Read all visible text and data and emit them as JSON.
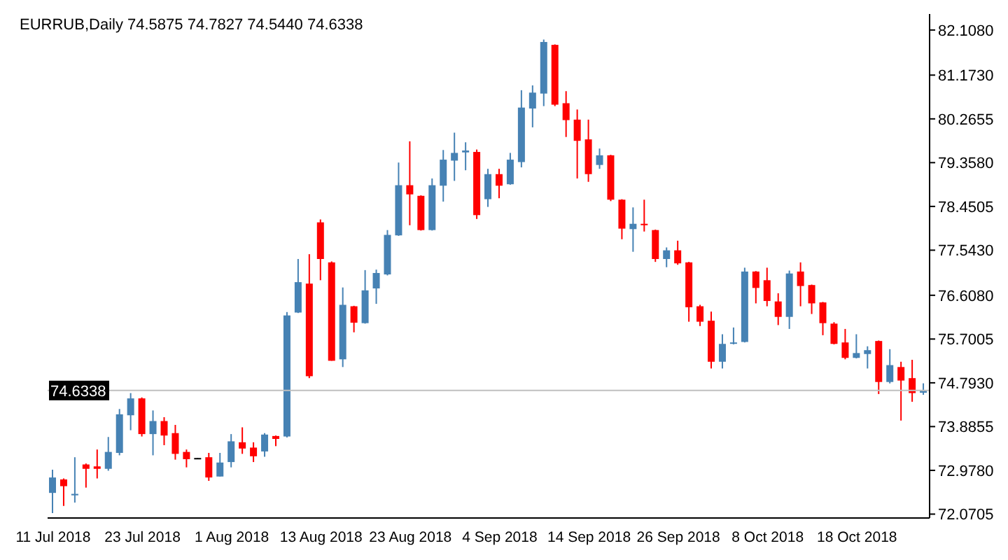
{
  "chart_data": {
    "type": "candlestick",
    "title": "EURRUB,Daily 74.5875 74.7827 74.5440 74.6338",
    "categories": [
      "11 Jul 2018",
      null,
      null,
      null,
      null,
      null,
      null,
      null,
      "23 Jul 2018",
      null,
      null,
      null,
      null,
      null,
      null,
      null,
      "1 Aug 2018",
      null,
      null,
      null,
      null,
      null,
      null,
      null,
      "13 Aug 2018",
      null,
      null,
      null,
      null,
      null,
      null,
      null,
      "23 Aug 2018",
      null,
      null,
      null,
      null,
      null,
      null,
      null,
      "4 Sep 2018",
      null,
      null,
      null,
      null,
      null,
      null,
      null,
      "14 Sep 2018",
      null,
      null,
      null,
      null,
      null,
      null,
      null,
      "26 Sep 2018",
      null,
      null,
      null,
      null,
      null,
      null,
      null,
      "8 Oct 2018",
      null,
      null,
      null,
      null,
      null,
      null,
      null,
      "18 Oct 2018",
      null,
      null,
      null,
      null,
      null,
      null
    ],
    "ohlc": [
      [
        72.51,
        72.99,
        72.09,
        72.83
      ],
      [
        72.79,
        72.81,
        72.24,
        72.65
      ],
      [
        72.46,
        73.25,
        72.31,
        72.49
      ],
      [
        73.1,
        73.12,
        72.62,
        73.01
      ],
      [
        73.06,
        73.41,
        72.81,
        73.01
      ],
      [
        73.01,
        73.67,
        72.97,
        73.36
      ],
      [
        73.34,
        74.25,
        73.29,
        74.14
      ],
      [
        74.12,
        74.58,
        73.81,
        74.47
      ],
      [
        74.47,
        74.49,
        73.68,
        73.73
      ],
      [
        73.73,
        74.22,
        73.29,
        74.0
      ],
      [
        74.0,
        74.08,
        73.5,
        73.7
      ],
      [
        73.75,
        73.92,
        73.2,
        73.32
      ],
      [
        73.36,
        73.41,
        73.04,
        73.21
      ],
      [
        73.22,
        73.23,
        73.21,
        73.22
      ],
      [
        73.25,
        73.34,
        72.76,
        72.83
      ],
      [
        72.85,
        73.34,
        72.85,
        73.14
      ],
      [
        73.15,
        73.73,
        73.04,
        73.58
      ],
      [
        73.56,
        73.87,
        73.32,
        73.43
      ],
      [
        73.45,
        73.56,
        73.15,
        73.27
      ],
      [
        73.37,
        73.75,
        73.26,
        73.72
      ],
      [
        73.69,
        73.7,
        73.48,
        73.63
      ],
      [
        73.68,
        76.26,
        73.66,
        76.19
      ],
      [
        76.25,
        77.36,
        76.24,
        76.88
      ],
      [
        76.85,
        77.46,
        74.89,
        74.93
      ],
      [
        78.12,
        78.18,
        76.92,
        77.36
      ],
      [
        77.29,
        77.31,
        75.25,
        75.25
      ],
      [
        75.28,
        76.77,
        75.12,
        76.41
      ],
      [
        76.38,
        76.39,
        75.84,
        76.04
      ],
      [
        76.03,
        77.13,
        76.02,
        76.71
      ],
      [
        76.75,
        77.14,
        76.43,
        77.07
      ],
      [
        77.04,
        77.96,
        77.02,
        77.86
      ],
      [
        77.85,
        79.36,
        77.84,
        78.89
      ],
      [
        78.89,
        79.8,
        78.06,
        78.7
      ],
      [
        78.67,
        78.68,
        77.95,
        77.96
      ],
      [
        77.96,
        79.03,
        77.95,
        78.89
      ],
      [
        78.88,
        79.62,
        78.55,
        79.42
      ],
      [
        79.4,
        79.98,
        78.98,
        79.56
      ],
      [
        79.57,
        79.78,
        79.2,
        79.61
      ],
      [
        79.58,
        79.63,
        78.19,
        78.27
      ],
      [
        78.6,
        79.23,
        78.44,
        79.12
      ],
      [
        79.12,
        79.23,
        78.62,
        78.88
      ],
      [
        78.91,
        79.56,
        78.9,
        79.42
      ],
      [
        79.37,
        80.86,
        79.26,
        80.5
      ],
      [
        80.48,
        80.96,
        80.09,
        80.81
      ],
      [
        80.79,
        81.91,
        80.53,
        81.86
      ],
      [
        81.8,
        81.81,
        80.53,
        80.56
      ],
      [
        80.59,
        80.84,
        79.89,
        80.24
      ],
      [
        80.25,
        80.46,
        79.03,
        79.81
      ],
      [
        79.84,
        80.25,
        78.96,
        79.12
      ],
      [
        79.31,
        79.65,
        79.23,
        79.51
      ],
      [
        79.51,
        79.52,
        78.56,
        78.59
      ],
      [
        78.59,
        78.6,
        77.77,
        77.99
      ],
      [
        77.98,
        78.43,
        77.51,
        78.09
      ],
      [
        78.09,
        78.59,
        77.93,
        78.07
      ],
      [
        77.96,
        77.97,
        77.3,
        77.36
      ],
      [
        77.36,
        77.6,
        77.19,
        77.54
      ],
      [
        77.54,
        77.74,
        77.24,
        77.27
      ],
      [
        77.29,
        77.3,
        76.06,
        76.36
      ],
      [
        76.38,
        76.41,
        75.97,
        76.06
      ],
      [
        76.08,
        76.27,
        75.09,
        75.23
      ],
      [
        75.23,
        75.8,
        75.09,
        75.6
      ],
      [
        75.61,
        75.94,
        75.59,
        75.63
      ],
      [
        75.64,
        77.18,
        75.63,
        77.1
      ],
      [
        77.1,
        77.11,
        76.44,
        76.76
      ],
      [
        76.92,
        77.18,
        76.38,
        76.49
      ],
      [
        76.48,
        76.65,
        75.99,
        76.16
      ],
      [
        76.16,
        77.12,
        75.91,
        77.06
      ],
      [
        77.1,
        77.29,
        76.38,
        76.8
      ],
      [
        76.82,
        76.83,
        76.22,
        76.44
      ],
      [
        76.46,
        76.47,
        75.78,
        76.03
      ],
      [
        76.02,
        76.05,
        75.59,
        75.6
      ],
      [
        75.63,
        75.91,
        75.28,
        75.31
      ],
      [
        75.31,
        75.8,
        75.3,
        75.41
      ],
      [
        75.39,
        75.55,
        75.09,
        75.47
      ],
      [
        75.66,
        75.67,
        74.56,
        74.81
      ],
      [
        74.81,
        75.49,
        74.78,
        75.16
      ],
      [
        75.12,
        75.23,
        74.01,
        74.84
      ],
      [
        74.89,
        75.27,
        74.4,
        74.58
      ],
      [
        74.5875,
        74.7827,
        74.544,
        74.6338
      ]
    ],
    "colors": [
      "#4682b4",
      "#ff0000",
      "#4682b4",
      "#ff0000",
      "#ff0000",
      "#4682b4",
      "#4682b4",
      "#4682b4",
      "#ff0000",
      "#4682b4",
      "#ff0000",
      "#ff0000",
      "#ff0000",
      "#000000",
      "#ff0000",
      "#4682b4",
      "#4682b4",
      "#ff0000",
      "#ff0000",
      "#4682b4",
      "#ff0000",
      "#4682b4",
      "#4682b4",
      "#ff0000",
      "#ff0000",
      "#ff0000",
      "#4682b4",
      "#ff0000",
      "#4682b4",
      "#4682b4",
      "#4682b4",
      "#4682b4",
      "#ff0000",
      "#ff0000",
      "#4682b4",
      "#4682b4",
      "#4682b4",
      "#4682b4",
      "#ff0000",
      "#4682b4",
      "#ff0000",
      "#4682b4",
      "#4682b4",
      "#4682b4",
      "#4682b4",
      "#ff0000",
      "#ff0000",
      "#ff0000",
      "#ff0000",
      "#4682b4",
      "#ff0000",
      "#ff0000",
      "#4682b4",
      "#ff0000",
      "#ff0000",
      "#4682b4",
      "#ff0000",
      "#ff0000",
      "#ff0000",
      "#ff0000",
      "#4682b4",
      "#4682b4",
      "#4682b4",
      "#ff0000",
      "#ff0000",
      "#ff0000",
      "#4682b4",
      "#ff0000",
      "#ff0000",
      "#ff0000",
      "#ff0000",
      "#ff0000",
      "#4682b4",
      "#4682b4",
      "#ff0000",
      "#4682b4",
      "#ff0000",
      "#ff0000",
      "#4682b4"
    ],
    "ylim": [
      71.99,
      82.44
    ],
    "yticks": [
      {
        "value": 82.108,
        "label": "82.1080"
      },
      {
        "value": 81.173,
        "label": "81.1730"
      },
      {
        "value": 80.2655,
        "label": "80.2655"
      },
      {
        "value": 79.358,
        "label": "79.3580"
      },
      {
        "value": 78.4505,
        "label": "78.4505"
      },
      {
        "value": 77.543,
        "label": "77.5430"
      },
      {
        "value": 76.608,
        "label": "76.6080"
      },
      {
        "value": 75.7005,
        "label": "75.7005"
      },
      {
        "value": 74.793,
        "label": "74.7930"
      },
      {
        "value": 73.8855,
        "label": "73.8855"
      },
      {
        "value": 72.978,
        "label": "72.9780"
      },
      {
        "value": 72.0705,
        "label": "72.0705"
      }
    ],
    "ref_lines": [
      {
        "axis": "y",
        "value": 74.6338,
        "label": "74.6338",
        "color": "#c0c0c0"
      }
    ]
  }
}
